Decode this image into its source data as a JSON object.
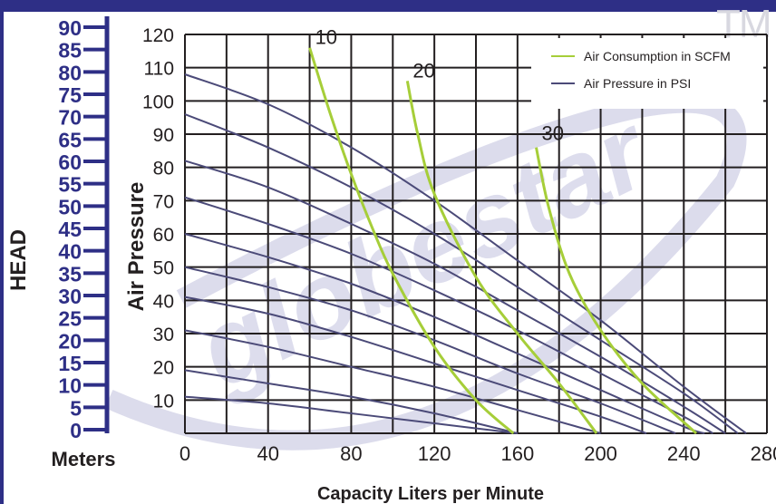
{
  "chart_data": {
    "type": "line",
    "xlabel": "Capacity Liters per Minute",
    "ylabel": "Air Pressure",
    "secondary_axis": {
      "title": "HEAD",
      "unit": "Meters",
      "range": [
        0,
        90
      ],
      "ticks": [
        0,
        5,
        10,
        15,
        20,
        25,
        30,
        35,
        40,
        45,
        50,
        55,
        60,
        65,
        70,
        75,
        80,
        85,
        90
      ]
    },
    "xlim": [
      0,
      280
    ],
    "ylim": [
      0,
      120
    ],
    "x_ticks": [
      0,
      40,
      80,
      120,
      160,
      200,
      240,
      280
    ],
    "y_ticks": [
      10,
      20,
      30,
      40,
      50,
      60,
      70,
      80,
      90,
      100,
      110,
      120
    ],
    "grid": true,
    "legend_position": "top-right",
    "legend": [
      {
        "label": "Air Consumption in SCFM",
        "color": "#a6ce39"
      },
      {
        "label": "Air Pressure in PSI",
        "color": "#4b4a78"
      }
    ],
    "pressure_curves": [
      {
        "points": [
          [
            0,
            108
          ],
          [
            40,
            99
          ],
          [
            80,
            86
          ],
          [
            120,
            70
          ],
          [
            160,
            52
          ],
          [
            200,
            34
          ],
          [
            240,
            14
          ],
          [
            270,
            0
          ]
        ]
      },
      {
        "points": [
          [
            0,
            96
          ],
          [
            40,
            86
          ],
          [
            80,
            74
          ],
          [
            120,
            60
          ],
          [
            160,
            44
          ],
          [
            200,
            28
          ],
          [
            240,
            12
          ],
          [
            266,
            0
          ]
        ]
      },
      {
        "points": [
          [
            0,
            82
          ],
          [
            40,
            74
          ],
          [
            80,
            63
          ],
          [
            120,
            51
          ],
          [
            160,
            37
          ],
          [
            200,
            23
          ],
          [
            240,
            8
          ],
          [
            260,
            0
          ]
        ]
      },
      {
        "points": [
          [
            0,
            71
          ],
          [
            40,
            63
          ],
          [
            80,
            54
          ],
          [
            120,
            43
          ],
          [
            160,
            31
          ],
          [
            200,
            18
          ],
          [
            240,
            5
          ],
          [
            254,
            0
          ]
        ]
      },
      {
        "points": [
          [
            0,
            60
          ],
          [
            40,
            53
          ],
          [
            80,
            45
          ],
          [
            120,
            35
          ],
          [
            160,
            24
          ],
          [
            200,
            13
          ],
          [
            240,
            2
          ],
          [
            250,
            0
          ]
        ]
      },
      {
        "points": [
          [
            0,
            50
          ],
          [
            40,
            44
          ],
          [
            80,
            37
          ],
          [
            120,
            28
          ],
          [
            160,
            18
          ],
          [
            200,
            9
          ],
          [
            236,
            0
          ]
        ]
      },
      {
        "points": [
          [
            0,
            41
          ],
          [
            40,
            36
          ],
          [
            80,
            29
          ],
          [
            120,
            21
          ],
          [
            160,
            13
          ],
          [
            200,
            5
          ],
          [
            222,
            0
          ]
        ]
      },
      {
        "points": [
          [
            0,
            31
          ],
          [
            40,
            26
          ],
          [
            80,
            20
          ],
          [
            120,
            14
          ],
          [
            160,
            7
          ],
          [
            200,
            0
          ]
        ]
      },
      {
        "points": [
          [
            0,
            19
          ],
          [
            40,
            15
          ],
          [
            80,
            11
          ],
          [
            120,
            6
          ],
          [
            160,
            0
          ]
        ]
      },
      {
        "points": [
          [
            0,
            11
          ],
          [
            40,
            9
          ],
          [
            80,
            6
          ],
          [
            120,
            3
          ],
          [
            160,
            0
          ]
        ]
      }
    ],
    "scfm_curves": [
      {
        "label": "10",
        "points": [
          [
            60,
            116
          ],
          [
            70,
            96
          ],
          [
            80,
            78
          ],
          [
            90,
            62
          ],
          [
            100,
            48
          ],
          [
            120,
            26
          ],
          [
            140,
            10
          ],
          [
            158,
            0
          ]
        ]
      },
      {
        "label": "20",
        "points": [
          [
            107,
            106
          ],
          [
            112,
            90
          ],
          [
            120,
            72
          ],
          [
            140,
            47
          ],
          [
            160,
            30
          ],
          [
            180,
            15
          ],
          [
            198,
            0
          ]
        ]
      },
      {
        "label": "30",
        "points": [
          [
            169,
            86
          ],
          [
            175,
            68
          ],
          [
            185,
            48
          ],
          [
            200,
            31
          ],
          [
            220,
            15
          ],
          [
            246,
            0
          ]
        ]
      }
    ]
  },
  "watermark": "globestar",
  "trademark": "TM"
}
